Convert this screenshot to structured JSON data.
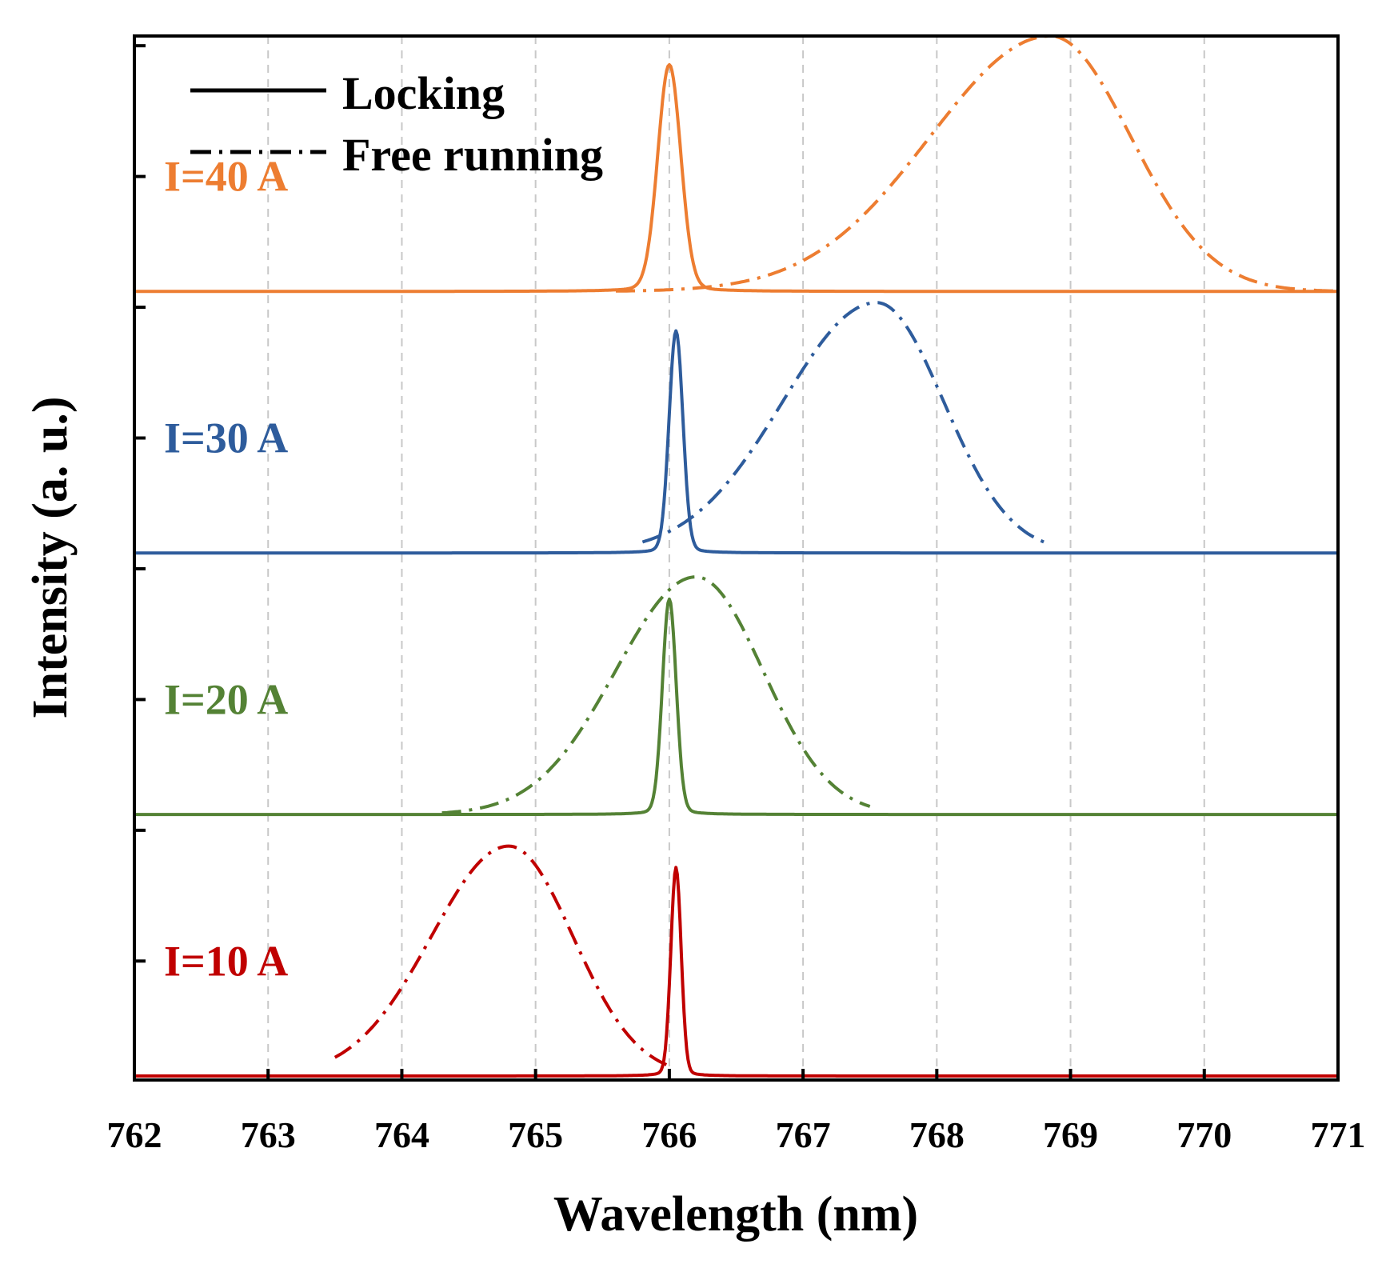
{
  "chart_data": {
    "type": "line",
    "title": "",
    "xlabel": "Wavelength (nm)",
    "ylabel": "Intensity (a. u.)",
    "xlim": [
      762,
      771
    ],
    "x_ticks": [
      "762",
      "763",
      "764",
      "765",
      "766",
      "767",
      "768",
      "769",
      "770",
      "771"
    ],
    "grid": "vertical dashed",
    "legend": {
      "placement": "top-left",
      "entries": [
        {
          "label": "Locking",
          "style": "solid"
        },
        {
          "label": "Free running",
          "style": "dash-dot"
        }
      ]
    },
    "series": [
      {
        "name": "I=10 A",
        "color": "#c00000",
        "locking": {
          "baseline": 0.0,
          "peak_wavelength": 766.05,
          "peak_height": 0.92,
          "fwhm": 0.09
        },
        "free_running": {
          "peak_wavelength": 764.8,
          "peak_height": 0.9,
          "width_left": 0.58,
          "width_right": 0.48,
          "start": 763.5,
          "end": 766.0
        }
      },
      {
        "name": "I=20 A",
        "color": "#548235",
        "locking": {
          "baseline": 2.15,
          "peak_wavelength": 766.0,
          "peak_height": 0.95,
          "fwhm": 0.12
        },
        "free_running": {
          "peak_wavelength": 766.2,
          "peak_height": 0.93,
          "width_left": 0.6,
          "width_right": 0.5,
          "start": 764.3,
          "end": 767.5
        }
      },
      {
        "name": "I=30 A",
        "color": "#2e5c9c",
        "locking": {
          "baseline": 4.3,
          "peak_wavelength": 766.05,
          "peak_height": 0.98,
          "fwhm": 0.12
        },
        "free_running": {
          "peak_wavelength": 767.55,
          "peak_height": 0.98,
          "width_left": 0.7,
          "width_right": 0.5,
          "start": 765.8,
          "end": 768.85
        }
      },
      {
        "name": "I=40 A",
        "color": "#ed7d31",
        "locking": {
          "baseline": 6.45,
          "peak_wavelength": 766.0,
          "peak_height": 1.0,
          "fwhm": 0.2
        },
        "free_running": {
          "peak_wavelength": 768.85,
          "peak_height": 1.0,
          "width_left": 0.9,
          "width_right": 0.6,
          "start": 765.6,
          "end": 771.0
        }
      }
    ]
  }
}
